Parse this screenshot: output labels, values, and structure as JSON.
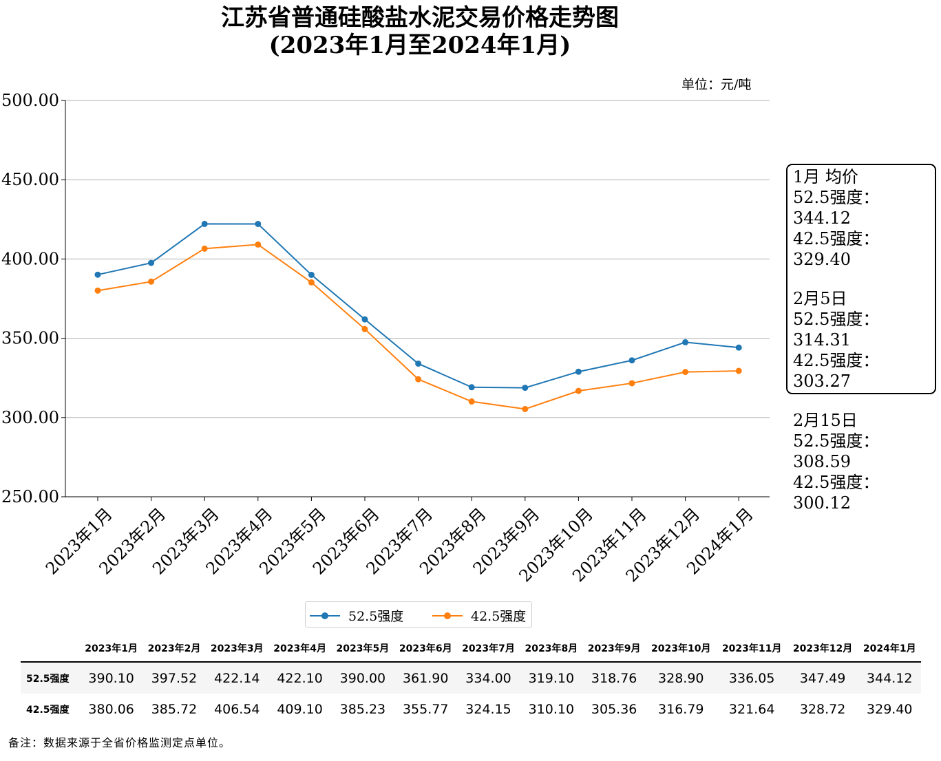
{
  "chart_data": {
    "type": "line",
    "title": "江苏省普通硅酸盐水泥交易价格走势图",
    "subtitle": "(2023年1月至2024年1月)",
    "unit": "单位：元/吨",
    "categories": [
      "2023年1月",
      "2023年2月",
      "2023年3月",
      "2023年4月",
      "2023年5月",
      "2023年6月",
      "2023年7月",
      "2023年8月",
      "2023年9月",
      "2023年10月",
      "2023年11月",
      "2023年12月",
      "2024年1月"
    ],
    "series": [
      {
        "name": "52.5强度",
        "color": "#1f77b4",
        "values": [
          390.1,
          397.52,
          422.14,
          422.1,
          390.0,
          361.9,
          334.0,
          319.1,
          318.76,
          328.9,
          336.05,
          347.49,
          344.12
        ]
      },
      {
        "name": "42.5强度",
        "color": "#ff7f0e",
        "values": [
          380.06,
          385.72,
          406.54,
          409.1,
          385.23,
          355.77,
          324.15,
          310.1,
          305.36,
          316.79,
          321.64,
          328.72,
          329.4
        ]
      }
    ],
    "ylim": [
      250,
      500
    ],
    "yticks": [
      "250.00",
      "300.00",
      "350.00",
      "400.00",
      "450.00",
      "500.00"
    ],
    "grid": "horizontal",
    "legend": "bottom-center"
  },
  "notes": [
    {
      "title": "1月 均价",
      "lines": [
        "52.5强度：344.12",
        "42.5强度：329.40"
      ]
    },
    {
      "title": "2月5日",
      "lines": [
        "52.5强度：314.31",
        "42.5强度：303.27"
      ]
    },
    {
      "title": "2月15日",
      "lines": [
        "52.5强度：308.59",
        "42.5强度：300.12"
      ]
    }
  ],
  "table": {
    "row_headers": [
      "52.5强度",
      "42.5强度"
    ],
    "rows": [
      [
        "390.10",
        "397.52",
        "422.14",
        "422.10",
        "390.00",
        "361.90",
        "334.00",
        "319.10",
        "318.76",
        "328.90",
        "336.05",
        "347.49",
        "344.12"
      ],
      [
        "380.06",
        "385.72",
        "406.54",
        "409.10",
        "385.23",
        "355.77",
        "324.15",
        "310.10",
        "305.36",
        "316.79",
        "321.64",
        "328.72",
        "329.40"
      ]
    ]
  },
  "footnote": "备注：数据来源于全省价格监测定点单位。"
}
